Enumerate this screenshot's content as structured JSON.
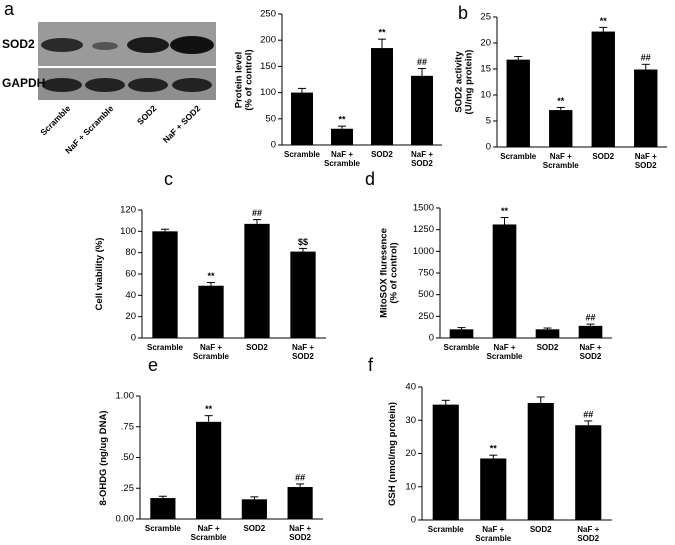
{
  "blot": {
    "panel": "a",
    "rows": [
      "SOD2",
      "GAPDH"
    ],
    "lanes": [
      "Scramble",
      "NaF + Scramble",
      "SOD2",
      "NaF + SOD2"
    ]
  },
  "chart_data": [
    {
      "type": "bar",
      "panel": null,
      "ylabel": "Protein level\n(% of control)",
      "categories": [
        "Scramble",
        "NaF +\nScramble",
        "SOD2",
        "NaF +\nSOD2"
      ],
      "values": [
        100,
        31,
        185,
        132
      ],
      "errors": [
        8,
        5,
        17,
        14
      ],
      "annotations": [
        null,
        "**",
        "**",
        "##"
      ],
      "color": "#000000",
      "ylim": [
        0,
        250
      ],
      "yticks": [
        0,
        50,
        100,
        150,
        200,
        250
      ]
    },
    {
      "type": "bar",
      "panel": "b",
      "ylabel": "SOD2 activity\n(U/mg protein)",
      "categories": [
        "Scramble",
        "NaF +\nScramble",
        "SOD2",
        "NaF +\nSOD2"
      ],
      "values": [
        16.8,
        7.1,
        22.2,
        14.9
      ],
      "errors": [
        0.6,
        0.5,
        0.8,
        1.0
      ],
      "annotations": [
        null,
        "**",
        "**",
        "##"
      ],
      "color": "#000000",
      "ylim": [
        0,
        25
      ],
      "yticks": [
        0,
        5,
        10,
        15,
        20,
        25
      ]
    },
    {
      "type": "bar",
      "panel": "c",
      "ylabel": "Cell viability (%)",
      "categories": [
        "Scramble",
        "NaF +\nScramble",
        "SOD2",
        "NaF +\nSOD2"
      ],
      "values": [
        100,
        49,
        107,
        81
      ],
      "errors": [
        2,
        3,
        4,
        3
      ],
      "annotations": [
        null,
        "**",
        "##",
        "$$"
      ],
      "color": "#000000",
      "ylim": [
        0,
        120
      ],
      "yticks": [
        0,
        20,
        40,
        60,
        80,
        100,
        120
      ]
    },
    {
      "type": "bar",
      "panel": "d",
      "ylabel": "MitoSOX fluresence\n(% of control)",
      "categories": [
        "Scramble",
        "NaF +\nScramble",
        "SOD2",
        "NaF +\nSOD2"
      ],
      "values": [
        100,
        1310,
        100,
        140
      ],
      "errors": [
        20,
        80,
        15,
        20
      ],
      "annotations": [
        null,
        "**",
        null,
        "##"
      ],
      "color": "#000000",
      "ylim": [
        0,
        1500
      ],
      "yticks": [
        0,
        250,
        500,
        750,
        1000,
        1250,
        1500
      ]
    },
    {
      "type": "bar",
      "panel": "e",
      "ylabel": "8-OHDG (ng/ug DNA)",
      "categories": [
        "Scramble",
        "NaF +\nScramble",
        "SOD2",
        "NaF +\nSOD2"
      ],
      "values": [
        0.17,
        0.79,
        0.16,
        0.26
      ],
      "errors": [
        0.015,
        0.05,
        0.02,
        0.025
      ],
      "annotations": [
        null,
        "**",
        null,
        "##"
      ],
      "color": "#000000",
      "ylim": [
        0,
        1
      ],
      "yticks": [
        {
          "value": 0,
          "label": "0.00"
        },
        {
          "value": 0.25,
          "label": ".25"
        },
        {
          "value": 0.5,
          "label": ".50"
        },
        {
          "value": 0.75,
          "label": ".75"
        },
        {
          "value": 1,
          "label": "1.00"
        }
      ]
    },
    {
      "type": "bar",
      "panel": "f",
      "ylabel": "GSH (nmol/mg protein)",
      "categories": [
        "Scramble",
        "NaF +\nScramble",
        "SOD2",
        "NaF +\nSOD2"
      ],
      "values": [
        34.7,
        18.5,
        35.2,
        28.5
      ],
      "errors": [
        1.3,
        1.0,
        1.8,
        1.3
      ],
      "annotations": [
        null,
        "**",
        null,
        "##"
      ],
      "color": "#000000",
      "ylim": [
        0,
        40
      ],
      "yticks": [
        0,
        10,
        20,
        30,
        40
      ]
    }
  ]
}
